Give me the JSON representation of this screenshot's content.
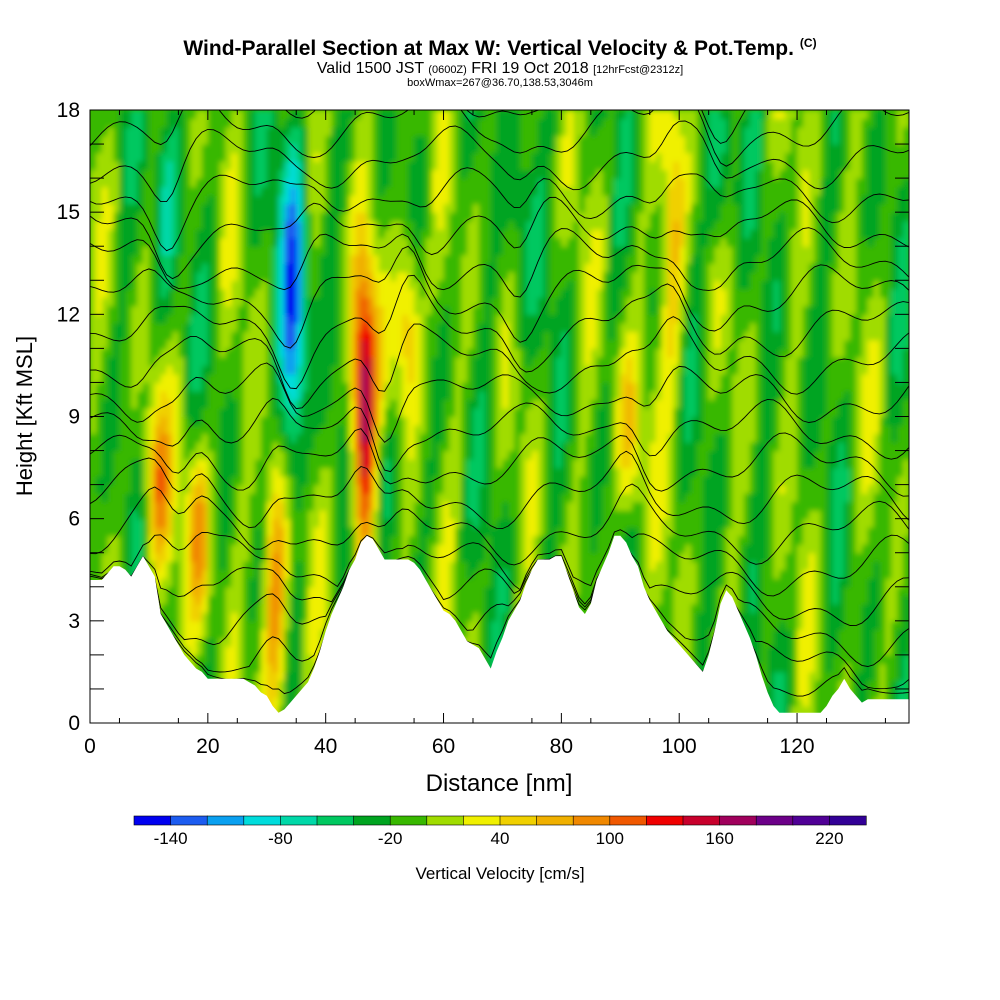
{
  "header": {
    "title": "Wind-Parallel Section at Max W: Vertical Velocity & Pot.Temp.",
    "copyright": "(C)",
    "valid_prefix": "Valid 1500 JST",
    "valid_utc": "(0600Z)",
    "valid_date": "FRI 19 Oct 2018",
    "forecast": "[12hrFcst@2312z]",
    "boxline": "boxWmax=267@36.70,138.53,3046m"
  },
  "chart_data": {
    "type": "heatmap",
    "xlabel": "Distance [nm]",
    "ylabel": "Height [Kft MSL]",
    "xlim": [
      0,
      139
    ],
    "ylim": [
      0,
      18
    ],
    "x_ticks": [
      0,
      20,
      40,
      60,
      80,
      100,
      120
    ],
    "y_ticks": [
      0,
      3,
      6,
      9,
      12,
      15,
      18
    ],
    "colorbar": {
      "label": "Vertical Velocity [cm/s]",
      "tick_labels": [
        "-140",
        "-80",
        "-20",
        "40",
        "100",
        "160",
        "220"
      ],
      "min": -160,
      "max": 240,
      "step": 20,
      "colors": [
        "#0000f0",
        "#1c5cf0",
        "#0aa0f0",
        "#00dcdc",
        "#00d8a8",
        "#00c860",
        "#00a420",
        "#38b800",
        "#a0dc00",
        "#f0f000",
        "#f0d000",
        "#f0b000",
        "#f08800",
        "#f05800",
        "#f00000",
        "#c8002c",
        "#a0005c",
        "#6c0088",
        "#500096",
        "#320096"
      ]
    },
    "terrain_kft": [
      [
        0,
        4.2
      ],
      [
        2,
        4.2
      ],
      [
        3,
        4.4
      ],
      [
        4,
        4.6
      ],
      [
        5,
        4.6
      ],
      [
        6,
        4.5
      ],
      [
        7,
        4.3
      ],
      [
        8,
        4.6
      ],
      [
        9,
        4.9
      ],
      [
        10,
        4.6
      ],
      [
        11,
        4.3
      ],
      [
        12,
        3.2
      ],
      [
        13,
        2.9
      ],
      [
        14,
        2.6
      ],
      [
        15,
        2.3
      ],
      [
        16,
        2.0
      ],
      [
        17,
        1.8
      ],
      [
        18,
        1.6
      ],
      [
        19,
        1.5
      ],
      [
        20,
        1.3
      ],
      [
        22,
        1.3
      ],
      [
        24,
        1.3
      ],
      [
        26,
        1.3
      ],
      [
        27,
        1.2
      ],
      [
        28,
        1.1
      ],
      [
        29,
        0.9
      ],
      [
        30,
        0.8
      ],
      [
        31,
        0.5
      ],
      [
        32,
        0.3
      ],
      [
        33,
        0.4
      ],
      [
        34,
        0.6
      ],
      [
        35,
        0.8
      ],
      [
        36,
        1.0
      ],
      [
        37,
        1.2
      ],
      [
        38,
        1.6
      ],
      [
        39,
        2.1
      ],
      [
        40,
        2.7
      ],
      [
        41,
        3.2
      ],
      [
        42,
        3.6
      ],
      [
        43,
        4.0
      ],
      [
        44,
        4.5
      ],
      [
        45,
        4.8
      ],
      [
        46,
        5.3
      ],
      [
        47,
        5.5
      ],
      [
        48,
        5.4
      ],
      [
        49,
        5.1
      ],
      [
        50,
        4.8
      ],
      [
        52,
        4.8
      ],
      [
        54,
        4.8
      ],
      [
        55,
        4.7
      ],
      [
        56,
        4.5
      ],
      [
        57,
        4.2
      ],
      [
        58,
        3.9
      ],
      [
        59,
        3.6
      ],
      [
        60,
        3.3
      ],
      [
        61,
        3.2
      ],
      [
        62,
        3.0
      ],
      [
        63,
        2.7
      ],
      [
        64,
        2.4
      ],
      [
        65,
        2.3
      ],
      [
        66,
        2.2
      ],
      [
        67,
        1.9
      ],
      [
        68,
        1.6
      ],
      [
        69,
        2.1
      ],
      [
        70,
        2.5
      ],
      [
        71,
        3.0
      ],
      [
        72,
        3.3
      ],
      [
        73,
        3.6
      ],
      [
        74,
        4.1
      ],
      [
        75,
        4.5
      ],
      [
        76,
        4.8
      ],
      [
        77,
        4.8
      ],
      [
        78,
        4.8
      ],
      [
        79,
        4.9
      ],
      [
        80,
        4.9
      ],
      [
        81,
        4.4
      ],
      [
        82,
        3.9
      ],
      [
        83,
        3.4
      ],
      [
        84,
        3.2
      ],
      [
        85,
        3.5
      ],
      [
        86,
        4.2
      ],
      [
        87,
        4.6
      ],
      [
        88,
        5.0
      ],
      [
        89,
        5.5
      ],
      [
        90,
        5.5
      ],
      [
        91,
        5.3
      ],
      [
        92,
        4.9
      ],
      [
        93,
        4.6
      ],
      [
        94,
        4.0
      ],
      [
        95,
        3.6
      ],
      [
        96,
        3.3
      ],
      [
        97,
        3.0
      ],
      [
        98,
        2.7
      ],
      [
        99,
        2.5
      ],
      [
        100,
        2.3
      ],
      [
        101,
        2.1
      ],
      [
        102,
        1.9
      ],
      [
        103,
        1.7
      ],
      [
        104,
        1.5
      ],
      [
        105,
        2.0
      ],
      [
        106,
        2.7
      ],
      [
        107,
        3.5
      ],
      [
        108,
        3.9
      ],
      [
        109,
        3.7
      ],
      [
        110,
        3.3
      ],
      [
        111,
        2.9
      ],
      [
        112,
        2.5
      ],
      [
        113,
        2.0
      ],
      [
        114,
        1.4
      ],
      [
        115,
        0.9
      ],
      [
        116,
        0.5
      ],
      [
        117,
        0.3
      ],
      [
        118,
        0.3
      ],
      [
        120,
        0.3
      ],
      [
        122,
        0.3
      ],
      [
        124,
        0.3
      ],
      [
        125,
        0.5
      ],
      [
        126,
        0.8
      ],
      [
        127,
        1.0
      ],
      [
        128,
        1.3
      ],
      [
        129,
        1.0
      ],
      [
        130,
        0.8
      ],
      [
        131,
        0.6
      ],
      [
        132,
        0.7
      ],
      [
        134,
        0.7
      ],
      [
        136,
        0.7
      ],
      [
        139,
        0.7
      ]
    ],
    "updraft_cores": [
      {
        "x": 46.5,
        "y_bottom": 5.8,
        "y_top": 12.5,
        "w_max": 180
      },
      {
        "x": 31.5,
        "y_bottom": 0.5,
        "y_top": 7.0,
        "w_max": 100
      },
      {
        "x": 18.5,
        "y_bottom": 3.5,
        "y_top": 7.5,
        "w_max": 80
      },
      {
        "x": 11.5,
        "y_bottom": 5.0,
        "y_top": 9.0,
        "w_max": 80
      },
      {
        "x": 54,
        "y_bottom": 9.5,
        "y_top": 14.0,
        "w_max": 80
      },
      {
        "x": 91.5,
        "y_bottom": 6.5,
        "y_top": 10.5,
        "w_max": 60
      },
      {
        "x": 99,
        "y_bottom": 10.5,
        "y_top": 18.0,
        "w_max": 60
      }
    ],
    "downdraft_cores": [
      {
        "x": 34.5,
        "y_bottom": 8.5,
        "y_top": 16.0,
        "w_min": -140
      },
      {
        "x": 13,
        "y_bottom": 13.0,
        "y_top": 18.0,
        "w_min": -60
      },
      {
        "x": 107,
        "y_bottom": 14.0,
        "y_top": 18.0,
        "w_min": -60
      },
      {
        "x": 49.5,
        "y_bottom": 6.0,
        "y_top": 9.0,
        "w_min": -60
      },
      {
        "x": 73,
        "y_bottom": 12.0,
        "y_top": 18.0,
        "w_min": -40
      }
    ]
  }
}
